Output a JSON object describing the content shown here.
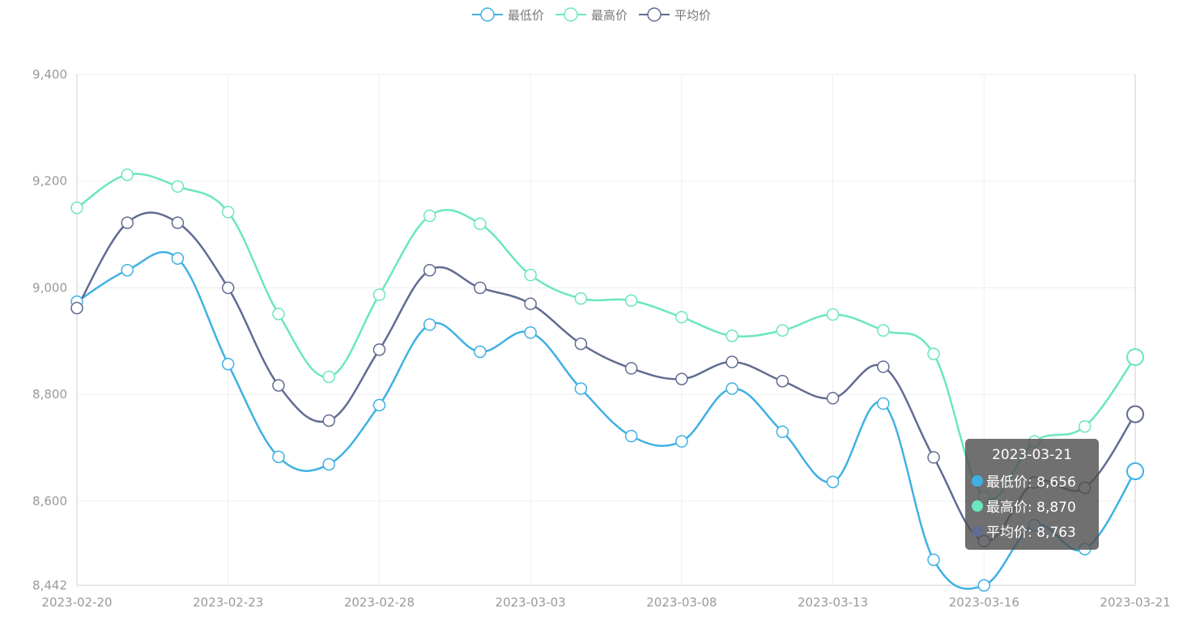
{
  "chart_data": {
    "type": "line",
    "x": [
      "2023-02-20",
      "2023-02-21",
      "2023-02-22",
      "2023-02-23",
      "2023-02-24",
      "2023-02-27",
      "2023-02-28",
      "2023-03-01",
      "2023-03-02",
      "2023-03-03",
      "2023-03-06",
      "2023-03-07",
      "2023-03-08",
      "2023-03-09",
      "2023-03-10",
      "2023-03-13",
      "2023-03-14",
      "2023-03-15",
      "2023-03-16",
      "2023-03-17",
      "2023-03-20",
      "2023-03-21"
    ],
    "x_tick_labels": [
      "2023-02-20",
      "2023-02-23",
      "2023-02-28",
      "2023-03-03",
      "2023-03-08",
      "2023-03-13",
      "2023-03-16",
      "2023-03-21"
    ],
    "y_tick_labels": [
      "8,442",
      "8,600",
      "8,800",
      "9,000",
      "9,200",
      "9,400"
    ],
    "ylim": [
      8442,
      9400
    ],
    "smooth": true,
    "grid": true,
    "legend_position": "top-center",
    "series": [
      {
        "name": "最低价",
        "color": "#3fb1e3",
        "values": [
          8974,
          9033,
          9055,
          8857,
          8683,
          8669,
          8780,
          8931,
          8880,
          8916,
          8811,
          8722,
          8712,
          8811,
          8730,
          8636,
          8783,
          8490,
          8442,
          8555,
          8510,
          8656
        ]
      },
      {
        "name": "最高价",
        "color": "#6be6c1",
        "values": [
          9150,
          9212,
          9190,
          9142,
          8951,
          8833,
          8987,
          9135,
          9120,
          9024,
          8980,
          8976,
          8945,
          8910,
          8920,
          8950,
          8920,
          8876,
          8608,
          8712,
          8740,
          8870
        ]
      },
      {
        "name": "平均价",
        "color": "#626c91",
        "values": [
          8962,
          9122,
          9122,
          9000,
          8817,
          8751,
          8884,
          9033,
          9000,
          8970,
          8895,
          8849,
          8829,
          8861,
          8825,
          8793,
          8852,
          8682,
          8525,
          8635,
          8625,
          8763
        ]
      }
    ],
    "tooltip": {
      "title": "2023-03-21",
      "rows": [
        {
          "label": "最低价: 8,656",
          "color": "#3fb1e3"
        },
        {
          "label": "最高价: 8,870",
          "color": "#6be6c1"
        },
        {
          "label": "平均价: 8,763",
          "color": "#626c91"
        }
      ]
    }
  }
}
